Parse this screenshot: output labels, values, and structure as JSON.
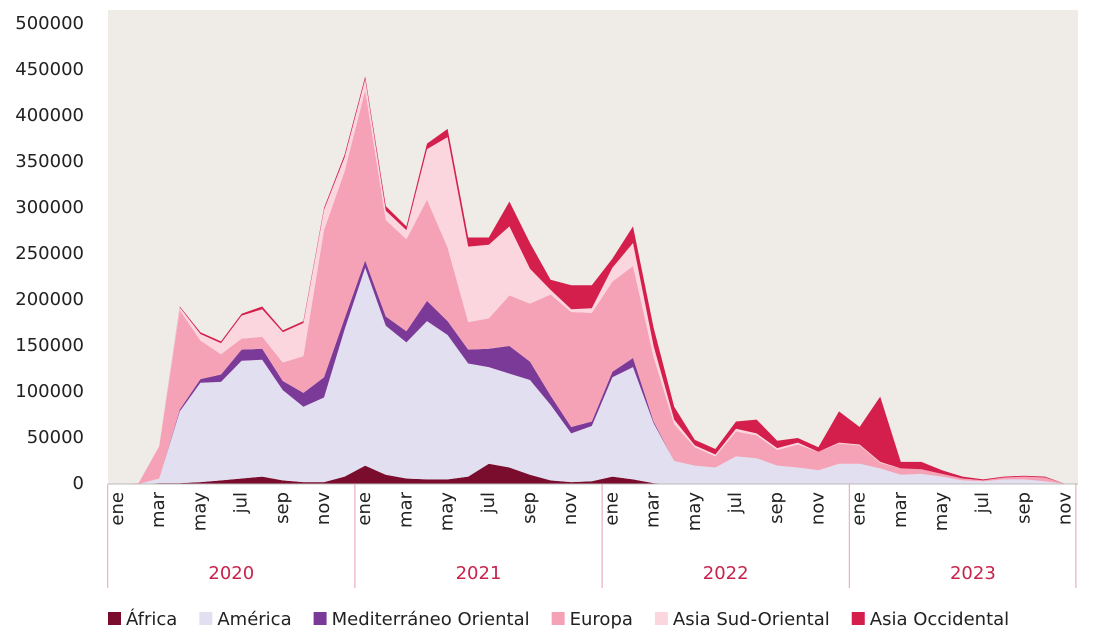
{
  "chart_data": {
    "type": "stacked_area",
    "categories": [
      "ene",
      null,
      "mar",
      null,
      "may",
      null,
      "jul",
      null,
      "sep",
      null,
      "nov",
      null,
      "ene",
      null,
      "mar",
      null,
      "may",
      null,
      "jul",
      null,
      "sep",
      null,
      "nov",
      null,
      "ene",
      null,
      "mar",
      null,
      "may",
      null,
      "jul",
      null,
      "sep",
      null,
      "nov",
      null,
      "ene",
      null,
      "mar",
      null,
      "may",
      null,
      "jul",
      null,
      "sep",
      null,
      "nov"
    ],
    "years": [
      "2020",
      "2021",
      "2022",
      "2023"
    ],
    "ylim": [
      0,
      500000
    ],
    "yticks": [
      0,
      50000,
      100000,
      150000,
      200000,
      250000,
      300000,
      350000,
      400000,
      450000,
      500000
    ],
    "series": [
      {
        "name": "África",
        "color": "#7a0c2e",
        "values": [
          0,
          0,
          1000,
          1000,
          2000,
          4000,
          6000,
          8000,
          4000,
          2000,
          2000,
          8000,
          20000,
          10000,
          6000,
          5000,
          5000,
          8000,
          22000,
          18000,
          10000,
          4000,
          2000,
          3000,
          8000,
          5000,
          1000,
          0,
          0,
          0,
          0,
          0,
          0,
          0,
          0,
          0,
          0,
          0,
          0,
          0,
          0,
          0,
          0,
          0,
          0,
          0,
          0
        ]
      },
      {
        "name": "América",
        "color": "#e2dff0",
        "values": [
          0,
          0,
          5000,
          78000,
          108000,
          107000,
          128000,
          127000,
          98000,
          82000,
          92000,
          160000,
          215000,
          162000,
          148000,
          172000,
          157000,
          123000,
          105000,
          102000,
          103000,
          82000,
          53000,
          60000,
          108000,
          122000,
          65000,
          25000,
          20000,
          18000,
          30000,
          28000,
          20000,
          18000,
          15000,
          22000,
          22000,
          17000,
          10000,
          11000,
          8000,
          4000,
          3000,
          5000,
          5000,
          3000,
          0
        ]
      },
      {
        "name": "Mediterráneo Oriental",
        "color": "#7b3a98",
        "values": [
          0,
          0,
          0,
          2000,
          4000,
          8000,
          12000,
          12000,
          10000,
          15000,
          22000,
          12000,
          8000,
          10000,
          12000,
          22000,
          15000,
          15000,
          20000,
          30000,
          20000,
          10000,
          7000,
          5000,
          6000,
          10000,
          2000,
          0,
          0,
          0,
          0,
          0,
          0,
          0,
          0,
          0,
          0,
          0,
          0,
          0,
          0,
          0,
          0,
          0,
          0,
          0,
          0
        ]
      },
      {
        "name": "Europa",
        "color": "#f5a2b7",
        "values": [
          0,
          1000,
          35000,
          108000,
          42000,
          22000,
          12000,
          13000,
          20000,
          40000,
          160000,
          160000,
          185000,
          105000,
          100000,
          110000,
          80000,
          30000,
          33000,
          55000,
          63000,
          110000,
          125000,
          118000,
          98000,
          100000,
          70000,
          40000,
          20000,
          12000,
          27000,
          25000,
          17000,
          25000,
          20000,
          22000,
          20000,
          6000,
          7000,
          5000,
          3000,
          2000,
          1000,
          2000,
          3000,
          4000,
          0
        ]
      },
      {
        "name": "Asia Sud-Oriental",
        "color": "#fbd6de",
        "values": [
          0,
          0,
          1000,
          3000,
          7000,
          12000,
          25000,
          30000,
          33000,
          36000,
          22000,
          15000,
          12000,
          10000,
          10000,
          55000,
          120000,
          82000,
          80000,
          75000,
          38000,
          5000,
          3000,
          5000,
          15000,
          25000,
          12000,
          5000,
          2000,
          2000,
          3000,
          2000,
          2000,
          2000,
          0,
          1000,
          1000,
          1000,
          0,
          0,
          0,
          0,
          0,
          0,
          0,
          0,
          0
        ]
      },
      {
        "name": "Asia Occidental",
        "color": "#d41f4d",
        "values": [
          0,
          0,
          0,
          1000,
          2000,
          2000,
          2000,
          3000,
          2000,
          2000,
          2000,
          3000,
          3000,
          5000,
          4000,
          6000,
          9000,
          10000,
          8000,
          27000,
          28000,
          11000,
          26000,
          25000,
          10000,
          18000,
          20000,
          14000,
          6000,
          6000,
          8000,
          15000,
          8000,
          5000,
          5000,
          34000,
          19000,
          71000,
          7000,
          8000,
          4000,
          2000,
          1000,
          1000,
          1000,
          1000,
          0
        ]
      }
    ]
  }
}
